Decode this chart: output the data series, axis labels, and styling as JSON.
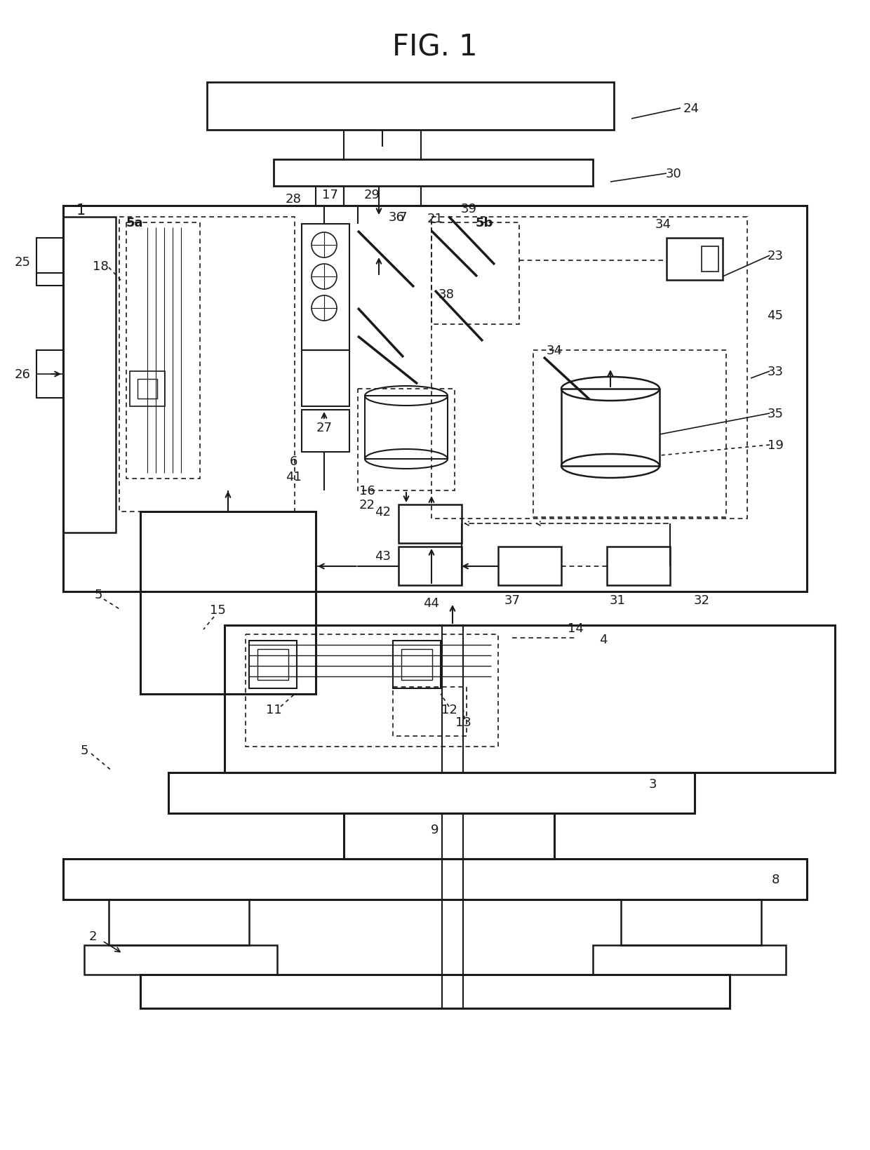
{
  "title": "FIG. 1",
  "bg": "#ffffff",
  "lc": "#1a1a1a",
  "fig_w": 12.4,
  "fig_h": 16.4,
  "dpi": 100
}
